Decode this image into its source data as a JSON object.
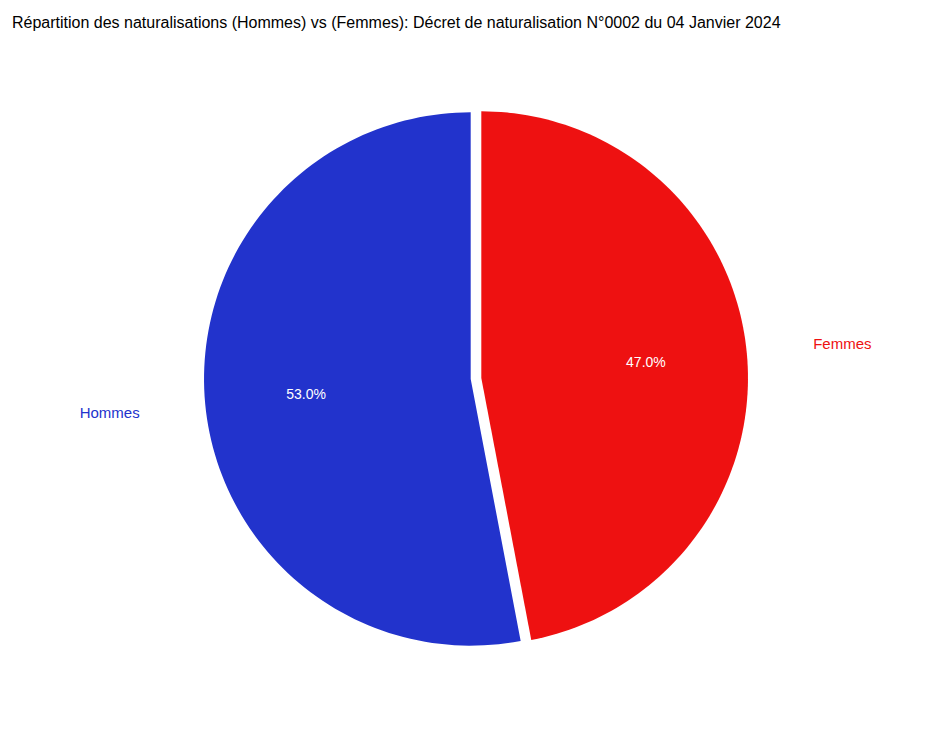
{
  "chart_data": {
    "type": "pie",
    "title": "Répartition des naturalisations (Hommes) vs (Femmes): Décret de naturalisation N°0002 du 04 Janvier 2024",
    "categories": [
      "Hommes",
      "Femmes"
    ],
    "values": [
      53.0,
      47.0
    ],
    "value_labels": [
      "53.0%",
      "47.0%"
    ],
    "colors": [
      "#2233cc",
      "#ee1111"
    ],
    "data_labels": true
  }
}
